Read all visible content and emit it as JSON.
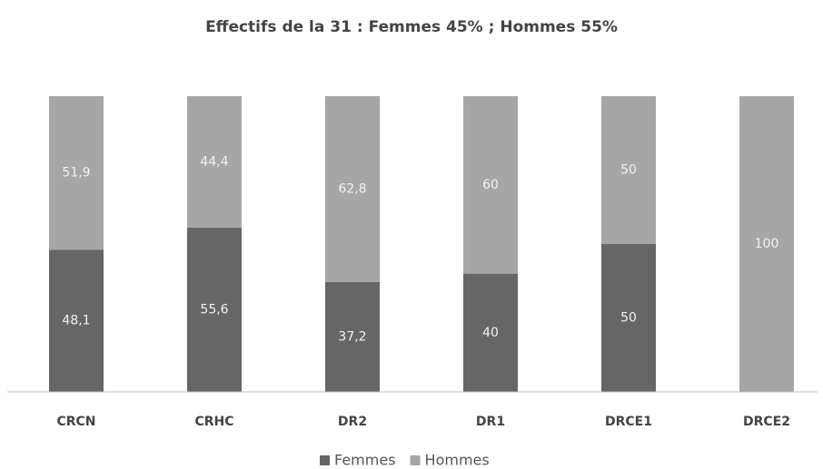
{
  "chart_data": {
    "type": "stacked_bar",
    "title": "Effectifs de la 31 : Femmes 45% ; Hommes 55%",
    "categories": [
      "CRCN",
      "CRHC",
      "DR2",
      "DR1",
      "DRCE1",
      "DRCE2"
    ],
    "series": [
      {
        "name": "Femmes",
        "color": "#666666",
        "values": [
          48.1,
          55.6,
          37.2,
          40,
          50,
          0
        ],
        "value_labels": [
          "48,1",
          "55,6",
          "37,2",
          "40",
          "50",
          null
        ]
      },
      {
        "name": "Hommes",
        "color": "#a6a6a6",
        "values": [
          51.9,
          44.4,
          62.8,
          60,
          50,
          100
        ],
        "value_labels": [
          "51,9",
          "44,4",
          "62,8",
          "60",
          "50",
          "100"
        ]
      }
    ],
    "legend": "bottom"
  }
}
